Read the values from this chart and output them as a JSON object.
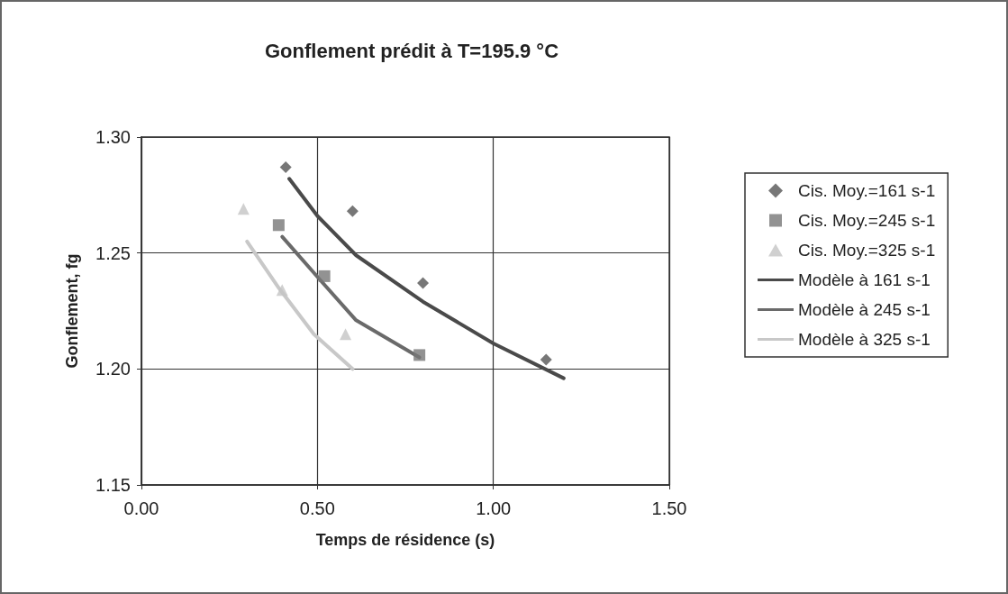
{
  "chart_data": {
    "type": "scatter",
    "title": "Gonflement prédit à T=195.9 °C",
    "xlabel": "Temps de résidence (s)",
    "ylabel": "Gonflement, fg",
    "xlim": [
      0,
      1.5
    ],
    "xticks": [
      {
        "value": 0,
        "label": "0.00"
      },
      {
        "value": 0.5,
        "label": "0.50"
      },
      {
        "value": 1,
        "label": "1.00"
      },
      {
        "value": 1.5,
        "label": "1.50"
      }
    ],
    "ylim": [
      1.15,
      1.3
    ],
    "yticks": [
      1.15,
      {
        "value": 1.2,
        "label": "1.20"
      },
      1.25,
      {
        "value": 1.3,
        "label": "1.30"
      }
    ],
    "grid": true,
    "legend": "right",
    "series": [
      {
        "name": "Cis. Moy.=161 s-1",
        "marker": "diamond",
        "color": "#555555",
        "x": [
          0.41,
          0.6,
          0.8,
          1.15
        ],
        "values": [
          1.287,
          1.268,
          1.237,
          1.204
        ]
      },
      {
        "name": "Cis. Moy.=245 s-1",
        "marker": "square",
        "color": "#777777",
        "x": [
          0.39,
          0.52,
          0.79
        ],
        "values": [
          1.262,
          1.24,
          1.206
        ]
      },
      {
        "name": "Cis. Moy.=325 s-1",
        "marker": "triangle",
        "color": "#c4c4c4",
        "x": [
          0.29,
          0.4,
          0.58
        ],
        "values": [
          1.269,
          1.234,
          1.215
        ]
      },
      {
        "name": "Modèle à 161 s-1",
        "type": "line",
        "marker": "none",
        "color": "#4a4a4a",
        "x": [
          0.42,
          0.5,
          0.61,
          0.8,
          1.0,
          1.2
        ],
        "values": [
          1.282,
          1.266,
          1.249,
          1.229,
          1.211,
          1.196
        ]
      },
      {
        "name": "Modèle à 245 s-1",
        "type": "line",
        "marker": "none",
        "color": "#6a6a6a",
        "x": [
          0.4,
          0.51,
          0.61,
          0.79
        ],
        "values": [
          1.257,
          1.238,
          1.221,
          1.205
        ]
      },
      {
        "name": "Modèle à 325 s-1",
        "type": "line",
        "marker": "none",
        "color": "#c8c8c8",
        "x": [
          0.3,
          0.39,
          0.49,
          0.6
        ],
        "values": [
          1.255,
          1.235,
          1.215,
          1.2
        ]
      }
    ]
  }
}
